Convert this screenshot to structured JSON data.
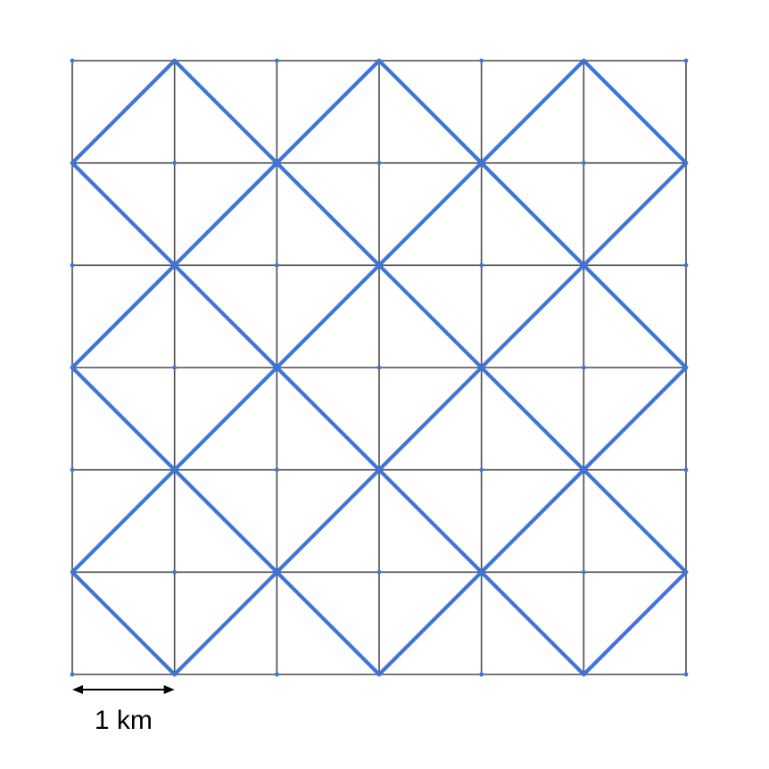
{
  "grid": {
    "cells": 6,
    "grid_color": "#4a4a4a",
    "diagonal_color": "#3f74d8"
  },
  "scale_bar": {
    "label": "1 km",
    "length_cells": 1
  }
}
